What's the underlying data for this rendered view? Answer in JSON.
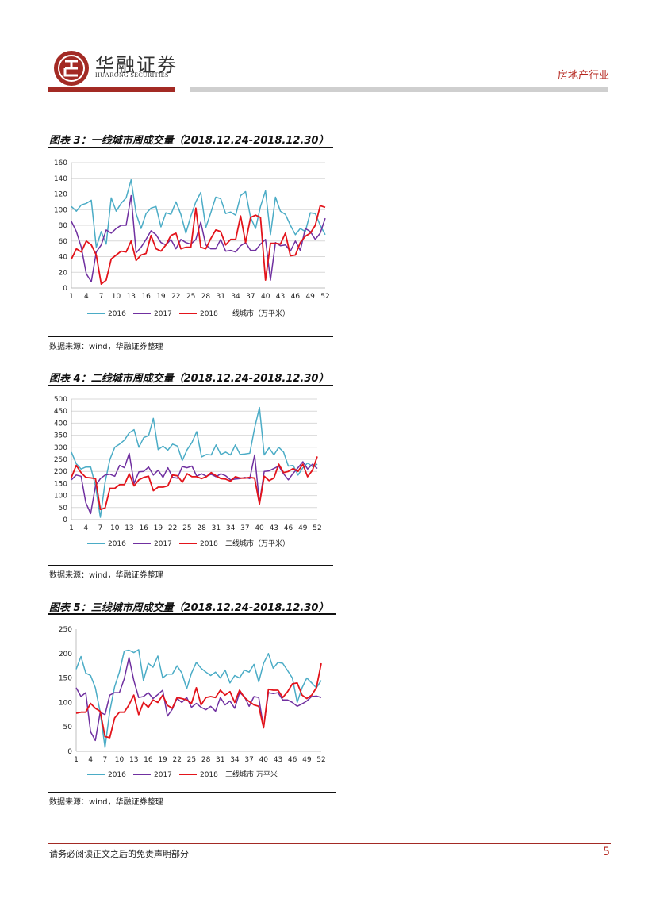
{
  "header": {
    "company_cn": "华融证券",
    "company_en": "HUARONG SECURITIES",
    "industry": "房地产行业"
  },
  "colors": {
    "s2016": "#4bacc6",
    "s2017": "#7030a0",
    "s2018": "#e3141b",
    "brand": "#a32a24"
  },
  "figures": [
    {
      "title": "图表 3：一线城市周成交量（2018.12.24-2018.12.30）",
      "source": "数据来源：wind，华融证券整理"
    },
    {
      "title": "图表 4：二线城市周成交量（2018.12.24-2018.12.30）",
      "source": "数据来源：wind，华融证券整理"
    },
    {
      "title": "图表 5：三线城市周成交量（2018.12.24-2018.12.30）",
      "source": "数据来源：wind，华融证券整理"
    }
  ],
  "chart_data": [
    {
      "type": "line",
      "ylim": [
        0,
        160
      ],
      "yticks": [
        0,
        20,
        40,
        60,
        80,
        100,
        120,
        140,
        160
      ],
      "xticks": [
        1,
        4,
        7,
        10,
        13,
        16,
        19,
        22,
        25,
        28,
        31,
        34,
        37,
        40,
        43,
        46,
        49,
        52
      ],
      "legend_label": "一线城市（万平米）",
      "grid": true,
      "legend_position": "bottom",
      "series": [
        {
          "name": "2016",
          "values": [
            104,
            98,
            106,
            108,
            112,
            52,
            72,
            56,
            115,
            98,
            108,
            115,
            138,
            95,
            76,
            95,
            102,
            104,
            78,
            96,
            94,
            110,
            94,
            70,
            92,
            110,
            122,
            77,
            96,
            116,
            114,
            95,
            97,
            93,
            118,
            123,
            90,
            76,
            104,
            124,
            68,
            116,
            98,
            94,
            80,
            68,
            76,
            72,
            96,
            95,
            80,
            68
          ]
        },
        {
          "name": "2017",
          "values": [
            85,
            72,
            52,
            18,
            8,
            46,
            55,
            74,
            70,
            76,
            80,
            80,
            118,
            45,
            52,
            62,
            73,
            68,
            58,
            55,
            62,
            50,
            62,
            58,
            56,
            62,
            84,
            55,
            50,
            50,
            62,
            47,
            48,
            46,
            54,
            58,
            48,
            48,
            56,
            62,
            10,
            58,
            54,
            55,
            47,
            60,
            48,
            76,
            72,
            62,
            70,
            89
          ]
        },
        {
          "name": "2018",
          "values": [
            37,
            50,
            46,
            60,
            55,
            42,
            5,
            10,
            37,
            42,
            47,
            46,
            60,
            35,
            42,
            44,
            67,
            50,
            47,
            55,
            67,
            70,
            50,
            52,
            52,
            102,
            52,
            50,
            63,
            74,
            72,
            55,
            62,
            62,
            92,
            58,
            90,
            93,
            90,
            10,
            57,
            57,
            56,
            70,
            41,
            42,
            58,
            66,
            70,
            80,
            105,
            103
          ]
        }
      ]
    },
    {
      "type": "line",
      "ylim": [
        0,
        500
      ],
      "yticks": [
        0,
        50,
        100,
        150,
        200,
        250,
        300,
        350,
        400,
        450,
        500
      ],
      "xticks": [
        1,
        4,
        7,
        10,
        13,
        16,
        19,
        22,
        25,
        28,
        31,
        34,
        37,
        40,
        43,
        46,
        49,
        52
      ],
      "legend_label": "二线城市（万平米）",
      "grid": true,
      "legend_position": "bottom",
      "series": [
        {
          "name": "2016",
          "values": [
            280,
            232,
            210,
            218,
            218,
            140,
            10,
            155,
            250,
            300,
            313,
            330,
            360,
            373,
            300,
            340,
            348,
            420,
            290,
            305,
            288,
            313,
            305,
            245,
            290,
            320,
            365,
            260,
            270,
            268,
            310,
            270,
            280,
            268,
            310,
            270,
            272,
            275,
            380,
            465,
            268,
            298,
            268,
            300,
            280,
            222,
            225,
            185,
            215,
            235,
            220,
            230
          ]
        },
        {
          "name": "2017",
          "values": [
            165,
            185,
            180,
            70,
            25,
            140,
            170,
            185,
            188,
            180,
            225,
            215,
            275,
            150,
            198,
            200,
            218,
            185,
            205,
            175,
            215,
            175,
            172,
            220,
            215,
            222,
            180,
            190,
            180,
            188,
            178,
            190,
            182,
            165,
            168,
            170,
            175,
            170,
            268,
            68,
            200,
            202,
            212,
            222,
            190,
            165,
            192,
            215,
            240,
            210,
            230,
            212
          ]
        },
        {
          "name": "2018",
          "values": [
            175,
            225,
            195,
            175,
            173,
            170,
            42,
            48,
            130,
            130,
            145,
            145,
            190,
            140,
            165,
            175,
            180,
            120,
            135,
            135,
            140,
            185,
            182,
            155,
            190,
            178,
            178,
            170,
            178,
            195,
            182,
            170,
            168,
            160,
            178,
            172,
            172,
            175,
            172,
            65,
            180,
            162,
            172,
            230,
            195,
            200,
            212,
            200,
            230,
            178,
            205,
            262
          ]
        }
      ]
    },
    {
      "type": "line",
      "ylim": [
        0,
        250
      ],
      "yticks": [
        0,
        50,
        100,
        150,
        200,
        250
      ],
      "xticks": [
        1,
        4,
        7,
        10,
        13,
        16,
        19,
        22,
        25,
        28,
        31,
        34,
        37,
        40,
        43,
        46,
        49,
        52
      ],
      "legend_label": "三线城市 万平米",
      "grid": false,
      "legend_position": "bottom",
      "series": [
        {
          "name": "2016",
          "values": [
            168,
            194,
            160,
            155,
            130,
            80,
            8,
            82,
            132,
            162,
            205,
            207,
            202,
            208,
            145,
            180,
            172,
            195,
            150,
            158,
            158,
            175,
            160,
            128,
            160,
            182,
            170,
            162,
            155,
            162,
            150,
            166,
            140,
            155,
            150,
            166,
            162,
            178,
            142,
            180,
            200,
            170,
            182,
            180,
            165,
            150,
            100,
            130,
            150,
            140,
            130,
            145
          ]
        },
        {
          "name": "2017",
          "values": [
            130,
            112,
            120,
            40,
            22,
            80,
            75,
            115,
            120,
            120,
            148,
            192,
            145,
            110,
            112,
            120,
            108,
            116,
            125,
            72,
            86,
            108,
            100,
            110,
            90,
            98,
            90,
            85,
            92,
            82,
            110,
            95,
            103,
            88,
            120,
            112,
            92,
            112,
            110,
            48,
            120,
            118,
            120,
            105,
            105,
            100,
            92,
            97,
            103,
            112,
            113,
            110
          ]
        },
        {
          "name": "2018",
          "values": [
            78,
            80,
            80,
            98,
            88,
            82,
            30,
            28,
            68,
            80,
            80,
            95,
            115,
            75,
            100,
            90,
            105,
            100,
            115,
            94,
            88,
            110,
            108,
            105,
            98,
            130,
            95,
            110,
            112,
            110,
            125,
            115,
            122,
            100,
            125,
            110,
            102,
            95,
            92,
            48,
            127,
            125,
            125,
            110,
            122,
            138,
            140,
            115,
            108,
            115,
            130,
            180
          ]
        }
      ]
    }
  ],
  "footer": {
    "disclaimer": "请务必阅读正文之后的免责声明部分",
    "page": "5"
  }
}
